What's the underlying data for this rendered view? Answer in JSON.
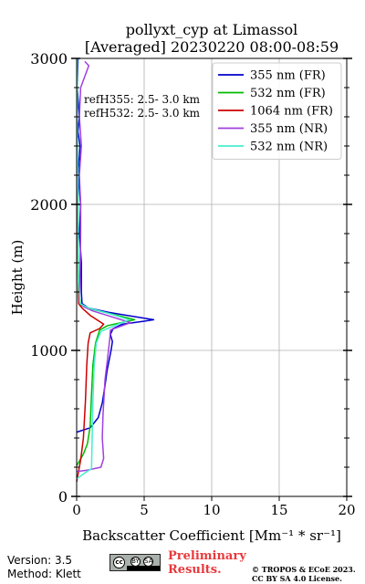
{
  "chart_data": {
    "type": "line",
    "title": "pollyxt_cyp at Limassol",
    "subtitle": "[Averaged] 20230220 08:00-08:59",
    "xlabel": "Backscatter Coefficient [Mm⁻¹ * sr⁻¹]",
    "ylabel": "Height (m)",
    "xlim": [
      0,
      20
    ],
    "ylim": [
      0,
      3000
    ],
    "xticks": [
      "0",
      "5",
      "10",
      "15",
      "20"
    ],
    "yticks": [
      "0",
      "1000",
      "2000",
      "3000"
    ],
    "grid": true,
    "legend_position": "top-right",
    "annotations": [
      "refH355:  2.5- 3.0 km",
      "refH532:  2.5- 3.0 km"
    ],
    "series": [
      {
        "name": "355 nm (FR)",
        "color": "#0000cc",
        "points": [
          [
            0,
            440
          ],
          [
            1.0,
            470
          ],
          [
            1.6,
            540
          ],
          [
            1.9,
            640
          ],
          [
            2.1,
            760
          ],
          [
            2.25,
            860
          ],
          [
            2.4,
            930
          ],
          [
            2.55,
            1000
          ],
          [
            2.65,
            1060
          ],
          [
            2.5,
            1110
          ],
          [
            2.7,
            1150
          ],
          [
            3.4,
            1180
          ],
          [
            5.0,
            1200
          ],
          [
            5.7,
            1210
          ],
          [
            4.4,
            1230
          ],
          [
            2.4,
            1260
          ],
          [
            0.9,
            1290
          ],
          [
            0.4,
            1320
          ],
          [
            0.35,
            1400
          ],
          [
            0.35,
            1600
          ],
          [
            0.2,
            1800
          ],
          [
            0.3,
            2000
          ],
          [
            0.1,
            2200
          ],
          [
            0.25,
            2400
          ],
          [
            0.1,
            2500
          ],
          [
            0.2,
            2600
          ],
          [
            0.05,
            2800
          ],
          [
            0.1,
            3000
          ]
        ]
      },
      {
        "name": "532 nm (FR)",
        "color": "#00bb00",
        "points": [
          [
            0,
            210
          ],
          [
            0.5,
            290
          ],
          [
            0.8,
            360
          ],
          [
            1.0,
            480
          ],
          [
            1.1,
            700
          ],
          [
            1.2,
            900
          ],
          [
            1.4,
            1050
          ],
          [
            1.7,
            1140
          ],
          [
            2.3,
            1170
          ],
          [
            4.3,
            1210
          ],
          [
            3.0,
            1240
          ],
          [
            1.2,
            1280
          ],
          [
            0.3,
            1310
          ],
          [
            0.15,
            1400
          ],
          [
            0.1,
            1700
          ],
          [
            0.1,
            2000
          ],
          [
            0.05,
            2400
          ],
          [
            0.05,
            3000
          ]
        ]
      },
      {
        "name": "1064 nm (FR)",
        "color": "#cc0000",
        "points": [
          [
            0,
            100
          ],
          [
            0.3,
            250
          ],
          [
            0.5,
            400
          ],
          [
            0.65,
            650
          ],
          [
            0.75,
            900
          ],
          [
            0.85,
            1050
          ],
          [
            1.0,
            1120
          ],
          [
            1.7,
            1150
          ],
          [
            2.0,
            1180
          ],
          [
            1.0,
            1240
          ],
          [
            0.4,
            1290
          ],
          [
            0.15,
            1320
          ],
          [
            0.1,
            1500
          ],
          [
            0.05,
            2000
          ],
          [
            0.05,
            3000
          ]
        ]
      },
      {
        "name": "355 nm (NR)",
        "color": "#a040e0",
        "points": [
          [
            0,
            170
          ],
          [
            0.8,
            180
          ],
          [
            1.8,
            200
          ],
          [
            2.0,
            260
          ],
          [
            1.9,
            400
          ],
          [
            1.95,
            560
          ],
          [
            2.1,
            800
          ],
          [
            2.3,
            950
          ],
          [
            2.45,
            1080
          ],
          [
            2.5,
            1140
          ],
          [
            3.4,
            1170
          ],
          [
            4.0,
            1190
          ],
          [
            2.6,
            1230
          ],
          [
            1.2,
            1270
          ],
          [
            0.5,
            1300
          ],
          [
            0.2,
            1330
          ],
          [
            0.25,
            1500
          ],
          [
            0.3,
            1800
          ],
          [
            0.3,
            2000
          ],
          [
            0.2,
            2200
          ],
          [
            0.35,
            2400
          ],
          [
            0.2,
            2600
          ],
          [
            0.3,
            2800
          ],
          [
            0.9,
            2950
          ],
          [
            0.6,
            2980
          ]
        ]
      },
      {
        "name": "532 nm (NR)",
        "color": "#44eecc",
        "points": [
          [
            0,
            120
          ],
          [
            0.6,
            160
          ],
          [
            1.1,
            190
          ],
          [
            1.15,
            400
          ],
          [
            1.2,
            650
          ],
          [
            1.3,
            900
          ],
          [
            1.45,
            1050
          ],
          [
            1.8,
            1130
          ],
          [
            2.8,
            1170
          ],
          [
            3.9,
            1210
          ],
          [
            2.5,
            1250
          ],
          [
            0.9,
            1290
          ],
          [
            0.25,
            1320
          ],
          [
            0.1,
            1500
          ],
          [
            0.1,
            2000
          ],
          [
            0.05,
            2500
          ],
          [
            0.05,
            3000
          ]
        ]
      }
    ]
  },
  "footer": {
    "version": "Version: 3.5",
    "method": "Method: Klett",
    "preliminary_line1": "Preliminary",
    "preliminary_line2": "Results.",
    "copyright_line1": "© TROPOS & ECoE 2023.",
    "copyright_line2": "CC BY SA 4.0 License.",
    "license_badge_lines": [
      "cc",
      "BY",
      "SA"
    ]
  }
}
